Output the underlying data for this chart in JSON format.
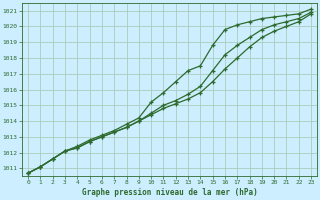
{
  "title": "Graphe pression niveau de la mer (hPa)",
  "background_color": "#cceeff",
  "grid_color": "#aaccbb",
  "line_color": "#2d6a2d",
  "xlim": [
    -0.5,
    23.5
  ],
  "ylim": [
    1010.5,
    1021.5
  ],
  "xticks": [
    0,
    1,
    2,
    3,
    4,
    5,
    6,
    7,
    8,
    9,
    10,
    11,
    12,
    13,
    14,
    15,
    16,
    17,
    18,
    19,
    20,
    21,
    22,
    23
  ],
  "yticks": [
    1011,
    1012,
    1013,
    1014,
    1015,
    1016,
    1017,
    1018,
    1019,
    1020,
    1021
  ],
  "series1_x": [
    0,
    1,
    2,
    3,
    4,
    5,
    6,
    7,
    8,
    9,
    10,
    11,
    12,
    13,
    14,
    15,
    16,
    17,
    18,
    19,
    20,
    21,
    22,
    23
  ],
  "series1_y": [
    1010.7,
    1011.1,
    1011.6,
    1012.1,
    1012.4,
    1012.8,
    1013.1,
    1013.4,
    1013.8,
    1014.2,
    1015.2,
    1015.8,
    1016.5,
    1017.2,
    1017.5,
    1018.8,
    1019.8,
    1020.1,
    1020.3,
    1020.5,
    1020.6,
    1020.7,
    1020.8,
    1021.1
  ],
  "series2_x": [
    0,
    1,
    2,
    3,
    4,
    5,
    6,
    7,
    8,
    9,
    10,
    11,
    12,
    13,
    14,
    15,
    16,
    17,
    18,
    19,
    20,
    21,
    22,
    23
  ],
  "series2_y": [
    1010.7,
    1011.1,
    1011.6,
    1012.1,
    1012.3,
    1012.7,
    1013.0,
    1013.3,
    1013.6,
    1014.0,
    1014.5,
    1015.0,
    1015.3,
    1015.7,
    1016.2,
    1017.2,
    1018.2,
    1018.8,
    1019.3,
    1019.8,
    1020.1,
    1020.3,
    1020.5,
    1020.9
  ],
  "series3_x": [
    0,
    1,
    2,
    3,
    4,
    5,
    6,
    7,
    8,
    9,
    10,
    11,
    12,
    13,
    14,
    15,
    16,
    17,
    18,
    19,
    20,
    21,
    22,
    23
  ],
  "series3_y": [
    1010.7,
    1011.1,
    1011.6,
    1012.1,
    1012.3,
    1012.7,
    1013.0,
    1013.3,
    1013.6,
    1014.0,
    1014.4,
    1014.8,
    1015.1,
    1015.4,
    1015.8,
    1016.5,
    1017.3,
    1018.0,
    1018.7,
    1019.3,
    1019.7,
    1020.0,
    1020.3,
    1020.8
  ]
}
